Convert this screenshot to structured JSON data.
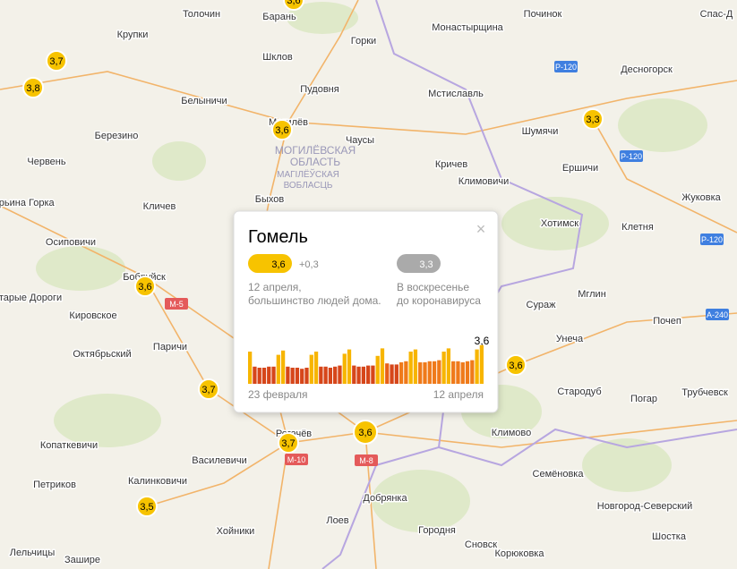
{
  "map": {
    "places": [
      "Толочин",
      "Барань",
      "Починок",
      "Спас-Д",
      "Крупки",
      "Горки",
      "Монастырщина",
      "Шклов",
      "Десногорск",
      "Пудовня",
      "Мстиславль",
      "Белыничи",
      "Могилёв",
      "Шумячи",
      "Березино",
      "Чаусы",
      "Червень",
      "Кричев",
      "Ершичи",
      "Климовичи",
      "Быхов",
      "Жуковка",
      "Кличев",
      "Хотимск",
      "Клетня",
      "Осиповичи",
      "Бобруйск",
      "Мглин",
      "Кировское",
      "Сураж",
      "Почеп",
      "Унеча",
      "Октябрьский",
      "Паричи",
      "Стародуб",
      "Погар",
      "Трубчевск",
      "Климово",
      "Копаткевичи",
      "Василевичи",
      "Калинковичи",
      "Петриков",
      "Семёновка",
      "Добрянка",
      "Новгород-Северский",
      "Лоев",
      "Хойники",
      "Городня",
      "Сновск",
      "Корюковка",
      "Шостка",
      "Лельчицы",
      "Зашире",
      "Марьина Горка",
      "Старые Дороги",
      "Рогачёв"
    ],
    "region": [
      "МОГИЛЁВСКАЯ",
      "ОБЛАСТЬ",
      "МАГІЛЁЎСКАЯ",
      "ВОБЛАСЦЬ"
    ],
    "roads": [
      "М-5",
      "М-10",
      "М-8",
      "Р-120",
      "Р-120",
      "Р-120",
      "А-240"
    ],
    "markers": [
      "3,7",
      "3,8",
      "3,6",
      "3,3",
      "3,6",
      "3,7",
      "3,7",
      "3,6",
      "3,6",
      "3,5",
      "3,6"
    ]
  },
  "popup": {
    "title": "Гомель",
    "index": "3,6",
    "delta": "+0,3",
    "baseline": "3,3",
    "current_text": [
      "12 апреля,",
      "большинство людей дома."
    ],
    "baseline_text": [
      "В воскресенье",
      "до коронавируса"
    ],
    "chart": {
      "type": "bar",
      "ylim": [
        0,
        4
      ],
      "values": [
        3.0,
        1.6,
        1.5,
        1.5,
        1.6,
        1.6,
        2.7,
        3.1,
        1.6,
        1.5,
        1.5,
        1.4,
        1.5,
        2.7,
        3.0,
        1.6,
        1.6,
        1.5,
        1.6,
        1.7,
        2.8,
        3.2,
        1.7,
        1.6,
        1.6,
        1.7,
        1.7,
        2.6,
        3.3,
        1.9,
        1.8,
        1.8,
        2.0,
        2.1,
        3.0,
        3.2,
        2.0,
        2.0,
        2.1,
        2.1,
        2.2,
        3.0,
        3.3,
        2.1,
        2.1,
        2.0,
        2.1,
        2.2,
        3.2,
        3.6
      ],
      "colors": [
        "#f7b500",
        "#d6461a",
        "#d6461a",
        "#d6461a",
        "#d6461a",
        "#d6461a",
        "#f7b500",
        "#f7b500",
        "#d6461a",
        "#d6461a",
        "#d6461a",
        "#d6461a",
        "#d6461a",
        "#f7b500",
        "#f7b500",
        "#d6461a",
        "#d6461a",
        "#d6461a",
        "#d6461a",
        "#d6461a",
        "#f7b500",
        "#f7b500",
        "#d6461a",
        "#d6461a",
        "#d6461a",
        "#d6461a",
        "#d6461a",
        "#f7b500",
        "#f7b500",
        "#e8601a",
        "#d6461a",
        "#d6461a",
        "#ef7a1a",
        "#ef7a1a",
        "#f7b500",
        "#f7b500",
        "#ef7a1a",
        "#ef7a1a",
        "#ef7a1a",
        "#ef7a1a",
        "#ef7a1a",
        "#f7b500",
        "#f7b500",
        "#ef7a1a",
        "#ef7a1a",
        "#ef7a1a",
        "#ef7a1a",
        "#ef7a1a",
        "#f7b500",
        "#f7b500"
      ],
      "last_label": "3,6",
      "start_label": "23 февраля",
      "end_label": "12 апреля"
    }
  }
}
